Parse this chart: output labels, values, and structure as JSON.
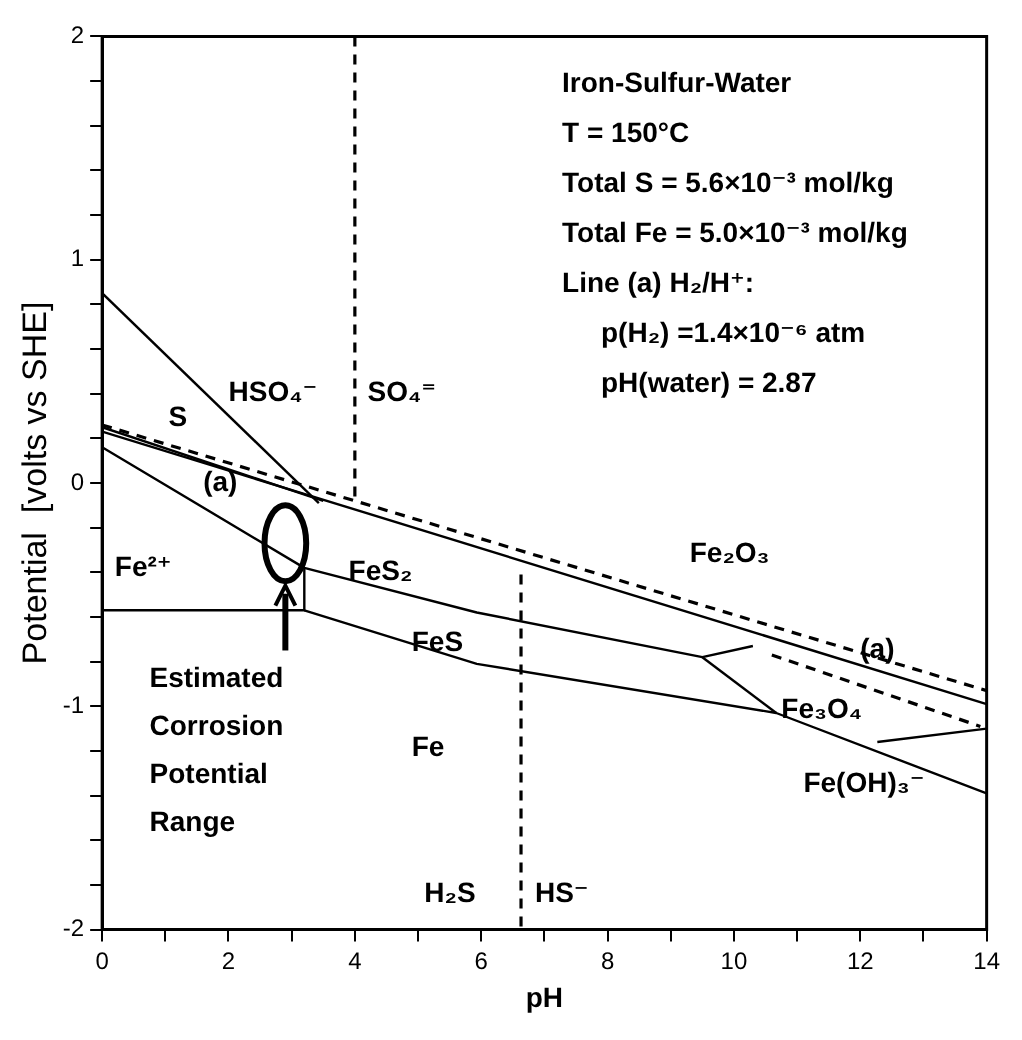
{
  "chart_data": {
    "type": "line",
    "xlabel": "pH",
    "ylabel": "Potential  [volts vs SHE]",
    "xlim": [
      0,
      14
    ],
    "ylim": [
      -2,
      2
    ],
    "xticks": [
      0,
      {
        "value": 1,
        "label": null
      },
      2,
      {
        "value": 3,
        "label": null
      },
      4,
      {
        "value": 5,
        "label": null
      },
      6,
      {
        "value": 7,
        "label": null
      },
      8,
      {
        "value": 9,
        "label": null
      },
      10,
      {
        "value": 11,
        "label": null
      },
      12,
      {
        "value": 13,
        "label": null
      },
      14
    ],
    "yticks": [
      -2,
      {
        "value": -1.8,
        "label": null
      },
      {
        "value": -1.6,
        "label": null
      },
      {
        "value": -1.4,
        "label": null
      },
      {
        "value": -1.2,
        "label": null
      },
      -1,
      {
        "value": -0.8,
        "label": null
      },
      {
        "value": -0.6,
        "label": null
      },
      {
        "value": -0.4,
        "label": null
      },
      {
        "value": -0.2,
        "label": null
      },
      0,
      {
        "value": 0.2,
        "label": null
      },
      {
        "value": 0.4,
        "label": null
      },
      {
        "value": 0.6,
        "label": null
      },
      {
        "value": 0.8,
        "label": null
      },
      1,
      {
        "value": 1.2,
        "label": null
      },
      {
        "value": 1.4,
        "label": null
      },
      {
        "value": 1.6,
        "label": null
      },
      {
        "value": 1.8,
        "label": null
      },
      2
    ],
    "grid": false,
    "legend": false,
    "marker": "none",
    "series": [
      {
        "color": "#000000",
        "x": [
          0,
          3.43
        ],
        "values": [
          0.85,
          -0.09
        ],
        "line_style": "solid"
      },
      {
        "color": "#000000",
        "x": [
          4,
          4
        ],
        "values": [
          2,
          -0.08
        ],
        "line_style": "dashed"
      },
      {
        "color": "#000000",
        "x": [
          6.63,
          6.63
        ],
        "values": [
          -0.41,
          -2
        ],
        "line_style": "dashed"
      },
      {
        "color": "#000000",
        "x": [
          0,
          14
        ],
        "values": [
          0.26,
          -0.93
        ],
        "line_style": "dashed"
      },
      {
        "color": "#000000",
        "x": [
          0,
          14
        ],
        "values": [
          0.23,
          -0.99
        ],
        "line_style": "solid"
      },
      {
        "color": "#000000",
        "x": [
          0,
          3.5
        ],
        "values": [
          0.25,
          -0.08
        ],
        "line_style": "solid"
      },
      {
        "color": "#000000",
        "x": [
          0,
          3.2,
          5.93,
          9.5,
          10.3
        ],
        "values": [
          0.16,
          -0.38,
          -0.58,
          -0.78,
          -0.73
        ],
        "line_style": "solid"
      },
      {
        "color": "#000000",
        "x": [
          0,
          3.2,
          3.2
        ],
        "values": [
          -0.57,
          -0.57,
          -0.38
        ],
        "line_style": "solid"
      },
      {
        "color": "#000000",
        "x": [
          3.2,
          5.93,
          10.67,
          14
        ],
        "values": [
          -0.57,
          -0.81,
          -1.03,
          -1.39
        ],
        "line_style": "solid"
      },
      {
        "color": "#000000",
        "x": [
          9.5,
          10.67
        ],
        "values": [
          -0.78,
          -1.03
        ],
        "line_style": "solid"
      },
      {
        "color": "#000000",
        "x": [
          12.27,
          14
        ],
        "values": [
          -1.16,
          -1.1
        ],
        "line_style": "solid"
      },
      {
        "color": "#000000",
        "x": [
          10.6,
          13.9
        ],
        "values": [
          -0.77,
          -1.09
        ],
        "line_style": "dashed"
      }
    ],
    "annotations": [
      "Iron-Sulfur-Water",
      "T = 150°C",
      "Total S = 5.6×10⁻³ mol/kg",
      "Total Fe = 5.0×10⁻³ mol/kg",
      "Line (a) H₂/H⁺:",
      "     p(H₂) =1.4×10⁻⁶ atm",
      "     pH(water) = 2.87",
      "HSO₄⁻",
      "SO₄⁼",
      "S",
      "(a)",
      "Fe²⁺",
      "FeS₂",
      "FeS",
      "Fe",
      "H₂S",
      "HS⁻",
      "Fe₂O₃",
      "(a)",
      "Fe₃O₄",
      "Fe(OH)₃⁻",
      "Estimated Corrosion Potential Range"
    ]
  }
}
